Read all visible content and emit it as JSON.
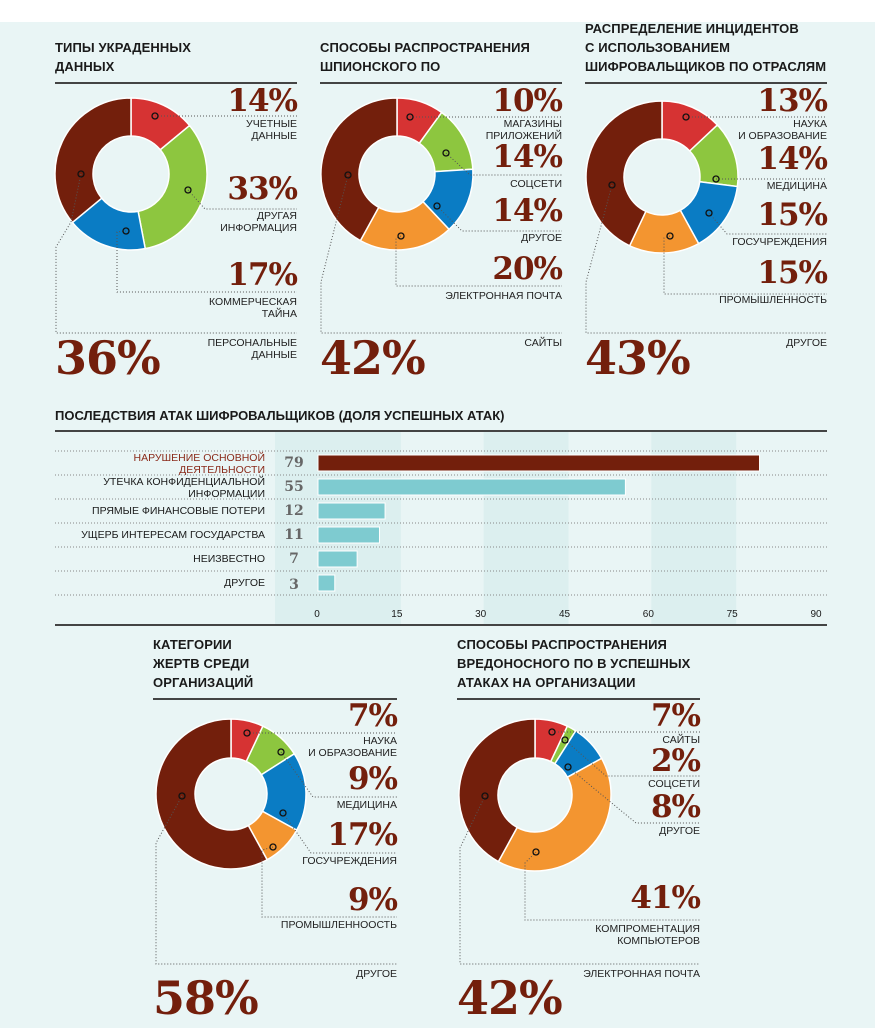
{
  "colors": {
    "red": "#d63333",
    "green": "#8dc63f",
    "blue": "#0a7cc4",
    "orange": "#f39530",
    "brown": "#731f0c",
    "teal": "#7ecbd0",
    "background": "#e9f5f5"
  },
  "chart_data": [
    {
      "type": "pie",
      "title": "ТИПЫ УКРАДЕННЫХ\nДАННЫХ",
      "slices": [
        {
          "label": "УЧЕТНЫЕ\nДАННЫЕ",
          "value": 14,
          "display": "14%",
          "color": "#d63333"
        },
        {
          "label": "ДРУГАЯ\nИНФОРМАЦИЯ",
          "value": 33,
          "display": "33%",
          "color": "#8dc63f"
        },
        {
          "label": "КОММЕРЧЕСКАЯ\nТАЙНА",
          "value": 17,
          "display": "17%",
          "color": "#0a7cc4"
        },
        {
          "label": "ПЕРСОНАЛЬНЫЕ\nДАННЫЕ",
          "value": 36,
          "display": "36%",
          "color": "#731f0c"
        }
      ]
    },
    {
      "type": "pie",
      "title": "СПОСОБЫ РАСПРОСТРАНЕНИЯ\nШПИОНСКОГО ПО",
      "slices": [
        {
          "label": "МАГАЗИНЫ\nПРИЛОЖЕНИЙ",
          "value": 10,
          "display": "10%",
          "color": "#d63333"
        },
        {
          "label": "СОЦСЕТИ",
          "value": 14,
          "display": "14%",
          "color": "#8dc63f"
        },
        {
          "label": "ДРУГОЕ",
          "value": 14,
          "display": "14%",
          "color": "#0a7cc4"
        },
        {
          "label": "ЭЛЕКТРОННАЯ ПОЧТА",
          "value": 20,
          "display": "20%",
          "color": "#f39530"
        },
        {
          "label": "САЙТЫ",
          "value": 42,
          "display": "42%",
          "color": "#731f0c"
        }
      ]
    },
    {
      "type": "pie",
      "title": "РАСПРЕДЕЛЕНИЕ ИНЦИДЕНТОВ\nС ИСПОЛЬЗОВАНИЕМ\nШИФРОВАЛЬЩИКОВ ПО ОТРАСЛЯМ",
      "slices": [
        {
          "label": "НАУКА\nИ ОБРАЗОВАНИЕ",
          "value": 13,
          "display": "13%",
          "color": "#d63333"
        },
        {
          "label": "МЕДИЦИНА",
          "value": 14,
          "display": "14%",
          "color": "#8dc63f"
        },
        {
          "label": "ГОСУЧРЕЖДЕНИЯ",
          "value": 15,
          "display": "15%",
          "color": "#0a7cc4"
        },
        {
          "label": "ПРОМЫШЛЕННОСТЬ",
          "value": 15,
          "display": "15%",
          "color": "#f39530"
        },
        {
          "label": "ДРУГОЕ",
          "value": 43,
          "display": "43%",
          "color": "#731f0c"
        }
      ]
    },
    {
      "type": "pie",
      "title": "КАТЕГОРИИ\nЖЕРТВ СРЕДИ\nОРГАНИЗАЦИЙ",
      "slices": [
        {
          "label": "НАУКА\nИ ОБРАЗОВАНИЕ",
          "value": 7,
          "display": "7%",
          "color": "#d63333"
        },
        {
          "label": "МЕДИЦИНА",
          "value": 9,
          "display": "9%",
          "color": "#8dc63f"
        },
        {
          "label": "ГОСУЧРЕЖДЕНИЯ",
          "value": 17,
          "display": "17%",
          "color": "#0a7cc4"
        },
        {
          "label": "ПРОМЫШЛЕННООСТЬ",
          "value": 9,
          "display": "9%",
          "color": "#f39530"
        },
        {
          "label": "ДРУГОЕ",
          "value": 58,
          "display": "58%",
          "color": "#731f0c"
        }
      ]
    },
    {
      "type": "pie",
      "title": "СПОСОБЫ РАСПРОСТРАНЕНИЯ\nВРЕДОНОСНОГО ПО В УСПЕШНЫХ\nАТАКАХ НА ОРГАНИЗАЦИИ",
      "slices": [
        {
          "label": "САЙТЫ",
          "value": 7,
          "display": "7%",
          "color": "#d63333"
        },
        {
          "label": "СОЦСЕТИ",
          "value": 2,
          "display": "2%",
          "color": "#8dc63f"
        },
        {
          "label": "ДРУГОЕ",
          "value": 8,
          "display": "8%",
          "color": "#0a7cc4"
        },
        {
          "label": "КОМПРОМЕНТАЦИЯ\nКОМПЬЮТЕРОВ",
          "value": 41,
          "display": "41%",
          "color": "#f39530"
        },
        {
          "label": "ЭЛЕКТРОННАЯ ПОЧТА",
          "value": 42,
          "display": "42%",
          "color": "#731f0c"
        }
      ]
    },
    {
      "type": "bar",
      "orientation": "horizontal",
      "title": "ПОСЛЕДСТВИЯ АТАК ШИФРОВАЛЬЩИКОВ (ДОЛЯ УСПЕШНЫХ АТАК)",
      "categories": [
        "НАРУШЕНИЕ ОСНОВНОЙ\nДЕЯТЕЛЬНОСТИ",
        "УТЕЧКА КОНФИДЕНЦИАЛЬНОЙ\nИНФОРМАЦИИ",
        "ПРЯМЫЕ ФИНАНСОВЫЕ ПОТЕРИ",
        "УЩЕРБ ИНТЕРЕСАМ ГОСУДАРСТВА",
        "НЕИЗВЕСТНО",
        "ДРУГОЕ"
      ],
      "values": [
        79,
        55,
        12,
        11,
        7,
        3
      ],
      "value_labels": [
        "79",
        "55",
        "12",
        "11",
        "7",
        "3"
      ],
      "bar_colors": [
        "#731f0c",
        "#7ecbd0",
        "#7ecbd0",
        "#7ecbd0",
        "#7ecbd0",
        "#7ecbd0"
      ],
      "highlight_label_color": "#8a2a1a",
      "xlim": [
        0,
        90
      ],
      "ticks": [
        "0",
        "15",
        "30",
        "45",
        "60",
        "75",
        "90"
      ],
      "grid": "alternating bands"
    }
  ]
}
